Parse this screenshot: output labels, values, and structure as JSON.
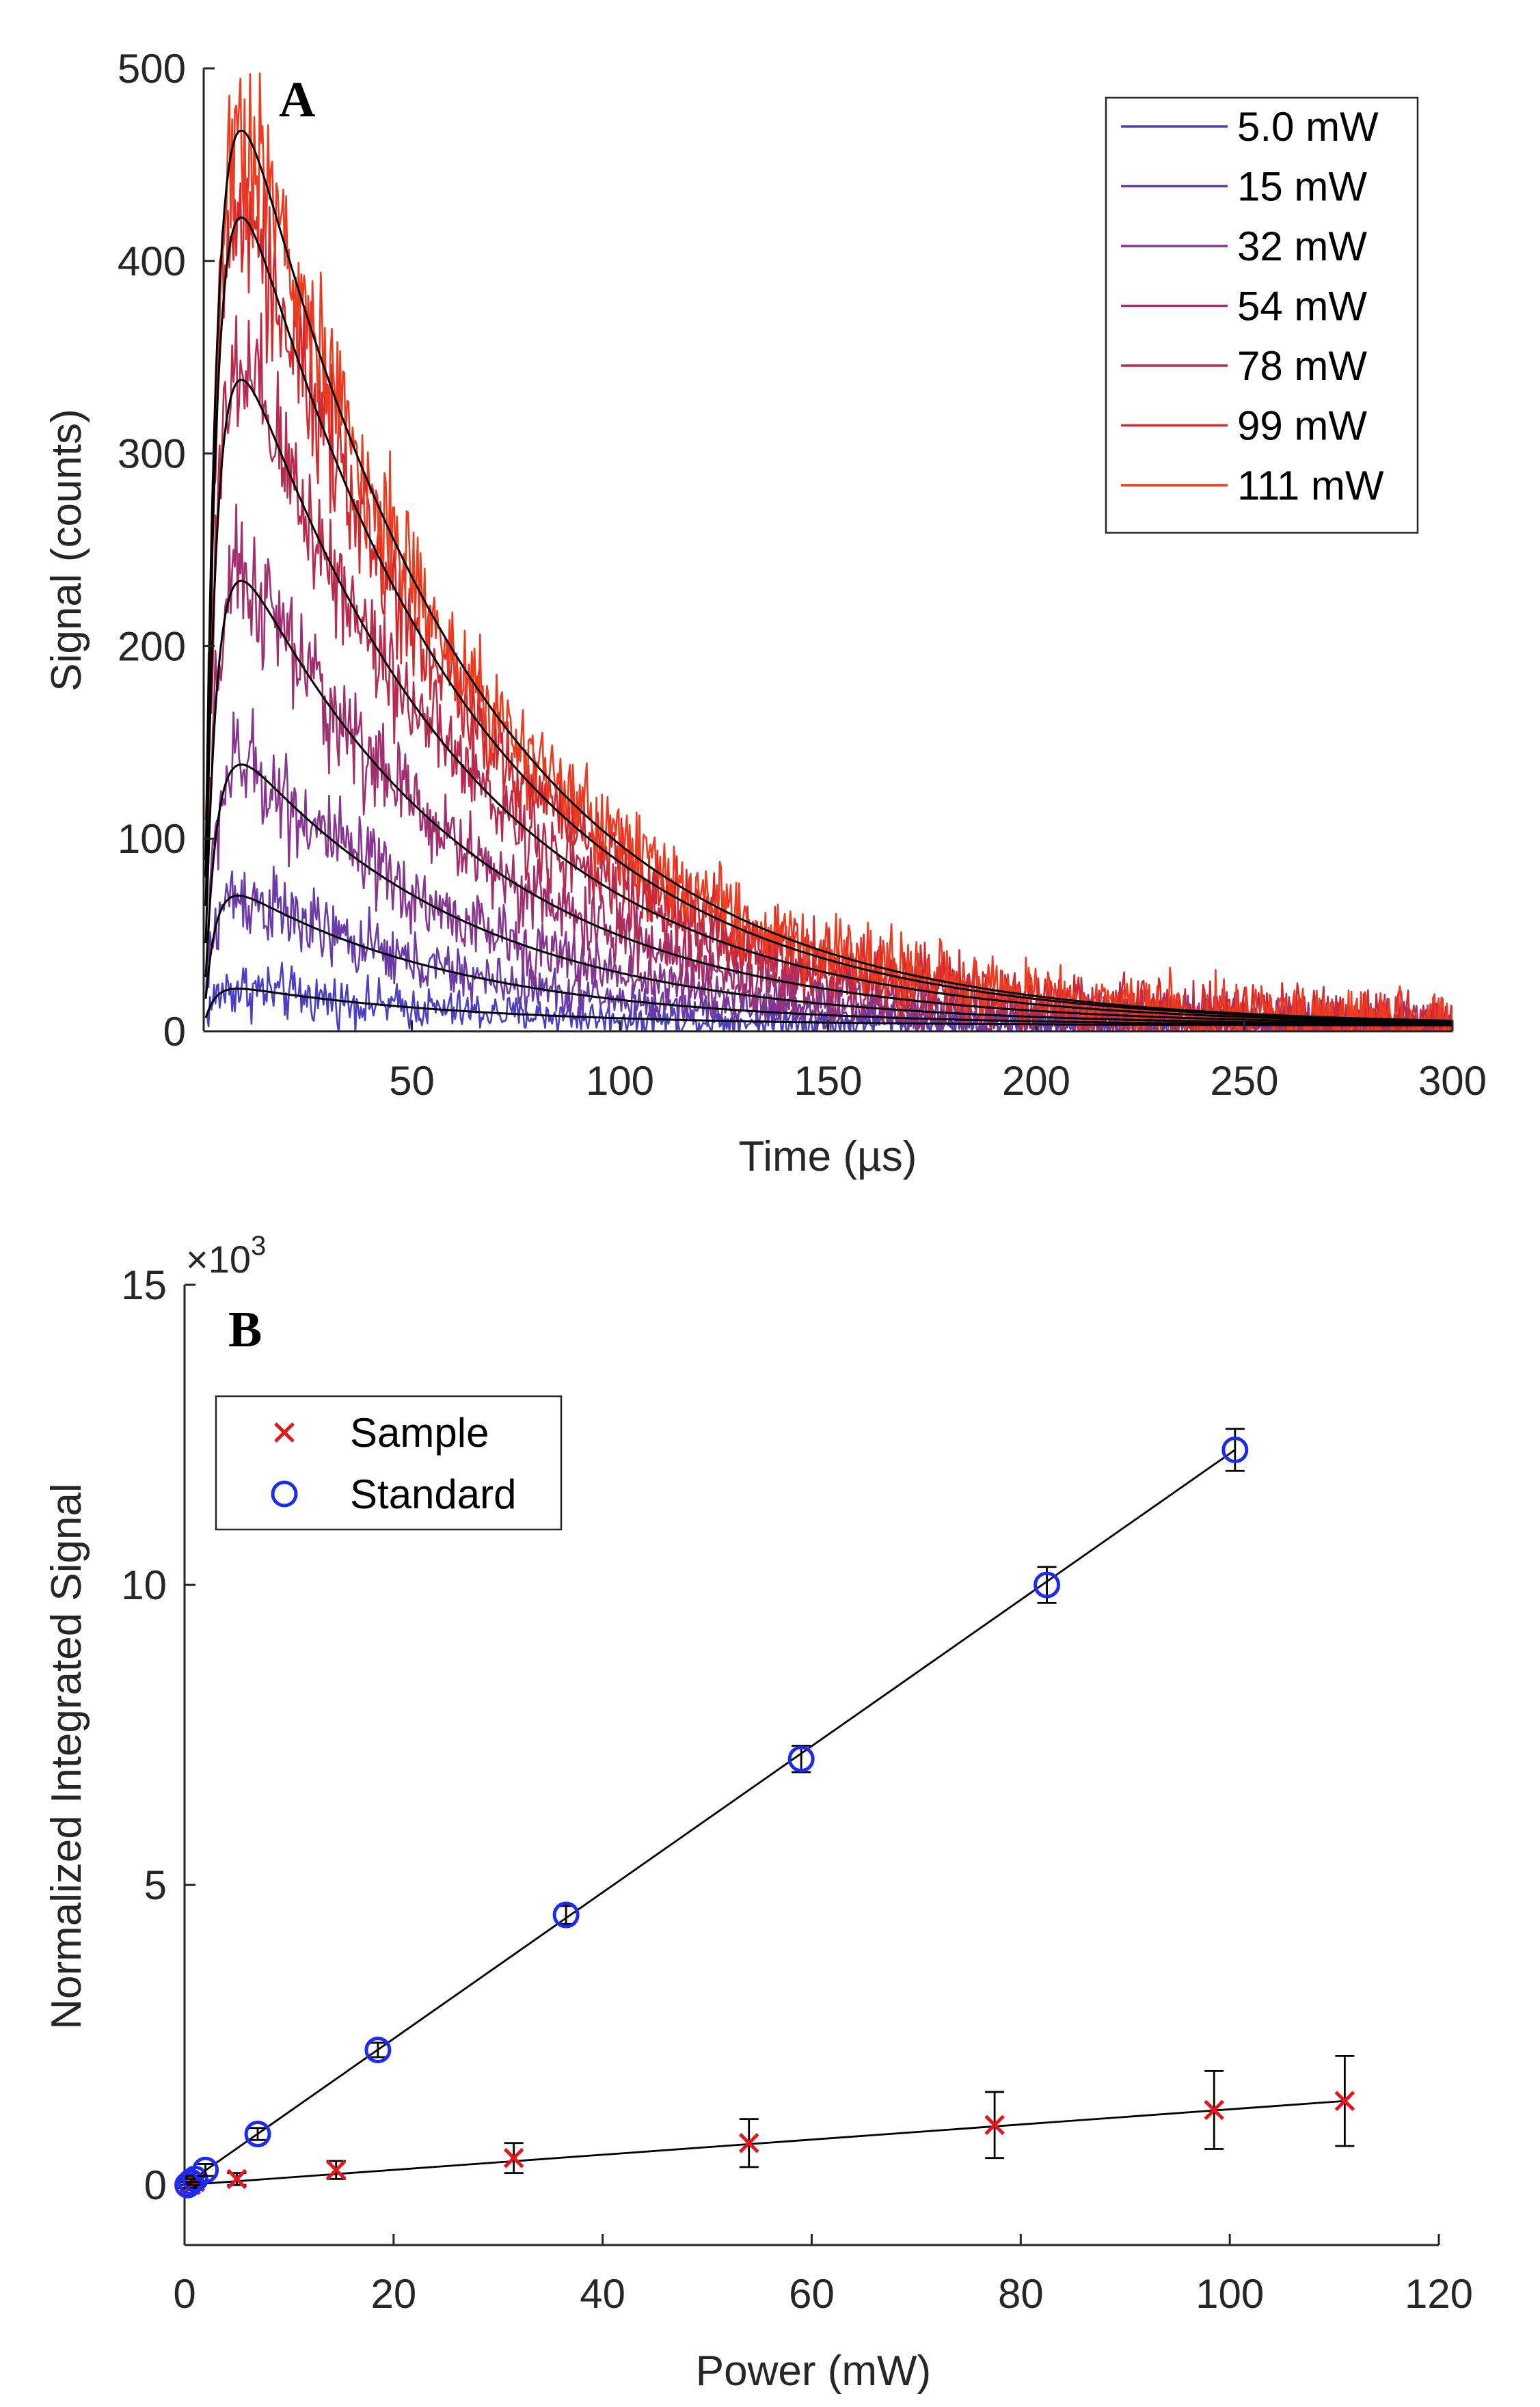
{
  "chart_data": [
    {
      "type": "line",
      "panel_label": "A",
      "xlabel": "Time (µs)",
      "ylabel": "Signal (counts)",
      "xlim": [
        0,
        300
      ],
      "ylim": [
        0,
        500
      ],
      "xticks": [
        50,
        100,
        150,
        200,
        250,
        300
      ],
      "yticks": [
        0,
        100,
        200,
        300,
        400,
        500
      ],
      "grid": false,
      "legend_position": "top-right",
      "fit_lines": "black",
      "series": [
        {
          "name": "5.0 mW",
          "color": "#4a3fc6",
          "peak": 22,
          "peak_time": 7,
          "baseline": 3,
          "decay_us": 55,
          "noise": 14
        },
        {
          "name": "15 mW",
          "color": "#6a3aa8",
          "peak": 70,
          "peak_time": 7,
          "baseline": 3,
          "decay_us": 55,
          "noise": 20
        },
        {
          "name": "32 mW",
          "color": "#873591",
          "peak": 138,
          "peak_time": 8,
          "baseline": 3,
          "decay_us": 55,
          "noise": 26
        },
        {
          "name": "54 mW",
          "color": "#a12f6f",
          "peak": 233,
          "peak_time": 8,
          "baseline": 3,
          "decay_us": 55,
          "noise": 32
        },
        {
          "name": "78 mW",
          "color": "#ba2a4e",
          "peak": 337,
          "peak_time": 8,
          "baseline": 3,
          "decay_us": 55,
          "noise": 36
        },
        {
          "name": "99 mW",
          "color": "#d4282d",
          "peak": 421,
          "peak_time": 8,
          "baseline": 3,
          "decay_us": 55,
          "noise": 40
        },
        {
          "name": "111 mW",
          "color": "#ee3b1f",
          "peak": 466,
          "peak_time": 8,
          "baseline": 3,
          "decay_us": 55,
          "noise": 44
        }
      ]
    },
    {
      "type": "scatter",
      "panel_label": "B",
      "xlabel": "Power (mW)",
      "ylabel": "Normalized Integrated Signal",
      "y_multiplier": "×10",
      "y_multiplier_exp": "3",
      "xlim": [
        0,
        120
      ],
      "ylim": [
        -1,
        15
      ],
      "xticks": [
        0,
        20,
        40,
        60,
        80,
        100,
        120
      ],
      "yticks": [
        0,
        5,
        10,
        15
      ],
      "grid": false,
      "legend_position": "top-left",
      "series": [
        {
          "name": "Sample",
          "marker": "x",
          "color": "#e8141b",
          "x": [
            0.3,
            0.6,
            1.0,
            5.0,
            14.5,
            31.5,
            54.0,
            77.5,
            98.5,
            111.0
          ],
          "y": [
            0.0,
            0.0,
            0.05,
            0.1,
            0.25,
            0.45,
            0.7,
            1.0,
            1.25,
            1.4
          ],
          "err": [
            0.05,
            0.05,
            0.08,
            0.1,
            0.15,
            0.25,
            0.4,
            0.55,
            0.65,
            0.75
          ],
          "fit": {
            "x": [
              0,
              111
            ],
            "y": [
              0.0,
              1.4
            ]
          }
        },
        {
          "name": "Standard",
          "marker": "o",
          "color": "#1c2af2",
          "x": [
            0.3,
            0.6,
            1.0,
            2.0,
            7.0,
            18.5,
            36.5,
            59.0,
            82.5,
            100.5
          ],
          "y": [
            0.0,
            0.05,
            0.1,
            0.25,
            0.85,
            2.25,
            4.5,
            7.1,
            10.0,
            12.25
          ],
          "err": [
            0.05,
            0.05,
            0.05,
            0.1,
            0.1,
            0.12,
            0.15,
            0.22,
            0.3,
            0.35
          ],
          "fit": {
            "x": [
              0,
              100.5
            ],
            "y": [
              0.0,
              12.25
            ]
          }
        }
      ]
    }
  ]
}
